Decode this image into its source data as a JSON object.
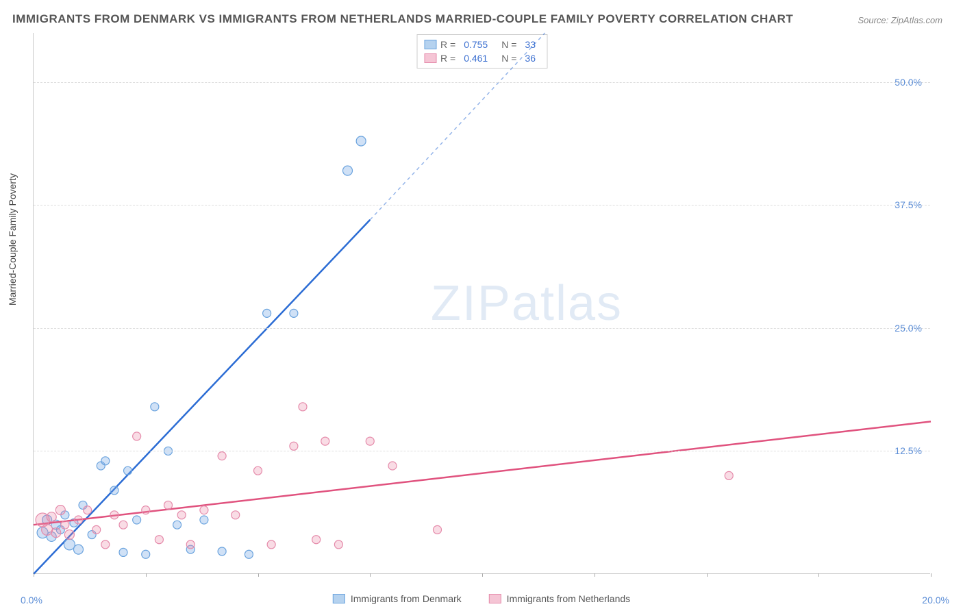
{
  "title": "IMMIGRANTS FROM DENMARK VS IMMIGRANTS FROM NETHERLANDS MARRIED-COUPLE FAMILY POVERTY CORRELATION CHART",
  "source": "Source: ZipAtlas.com",
  "watermark_zip": "ZIP",
  "watermark_atlas": "atlas",
  "y_axis_label": "Married-Couple Family Poverty",
  "chart": {
    "type": "scatter-with-regression",
    "x_range": [
      0,
      20
    ],
    "y_range": [
      0,
      55
    ],
    "background_color": "#ffffff",
    "grid_color": "#dddddd",
    "y_ticks": [
      {
        "value": 12.5,
        "label": "12.5%"
      },
      {
        "value": 25.0,
        "label": "25.0%"
      },
      {
        "value": 37.5,
        "label": "37.5%"
      },
      {
        "value": 50.0,
        "label": "50.0%"
      }
    ],
    "x_tick_values": [
      0,
      2.5,
      5,
      7.5,
      10,
      12.5,
      15,
      17.5,
      20
    ],
    "x_label_min": "0.0%",
    "x_label_max": "20.0%",
    "series": [
      {
        "name": "Immigrants from Denmark",
        "color_fill": "rgba(120,170,230,0.35)",
        "color_stroke": "#6aa3de",
        "swatch_fill": "#b5d2ef",
        "swatch_stroke": "#6aa3de",
        "line_color": "#2b6cd4",
        "R": "0.755",
        "N": "33",
        "regression": {
          "x1": 0,
          "y1": 0,
          "x2_solid": 7.5,
          "y2_solid": 36,
          "x2_dash": 11.4,
          "y2_dash": 55
        },
        "points": [
          {
            "x": 0.2,
            "y": 4.2,
            "r": 8
          },
          {
            "x": 0.3,
            "y": 5.5,
            "r": 7
          },
          {
            "x": 0.4,
            "y": 3.8,
            "r": 7
          },
          {
            "x": 0.5,
            "y": 5.0,
            "r": 7
          },
          {
            "x": 0.6,
            "y": 4.5,
            "r": 6
          },
          {
            "x": 0.7,
            "y": 6.0,
            "r": 6
          },
          {
            "x": 0.8,
            "y": 3.0,
            "r": 8
          },
          {
            "x": 0.9,
            "y": 5.2,
            "r": 6
          },
          {
            "x": 1.0,
            "y": 2.5,
            "r": 7
          },
          {
            "x": 1.1,
            "y": 7.0,
            "r": 6
          },
          {
            "x": 1.3,
            "y": 4.0,
            "r": 6
          },
          {
            "x": 1.5,
            "y": 11.0,
            "r": 6
          },
          {
            "x": 1.6,
            "y": 11.5,
            "r": 6
          },
          {
            "x": 1.8,
            "y": 8.5,
            "r": 6
          },
          {
            "x": 2.0,
            "y": 2.2,
            "r": 6
          },
          {
            "x": 2.1,
            "y": 10.5,
            "r": 6
          },
          {
            "x": 2.3,
            "y": 5.5,
            "r": 6
          },
          {
            "x": 2.5,
            "y": 2.0,
            "r": 6
          },
          {
            "x": 2.7,
            "y": 17.0,
            "r": 6
          },
          {
            "x": 3.0,
            "y": 12.5,
            "r": 6
          },
          {
            "x": 3.2,
            "y": 5.0,
            "r": 6
          },
          {
            "x": 3.5,
            "y": 2.5,
            "r": 6
          },
          {
            "x": 3.8,
            "y": 5.5,
            "r": 6
          },
          {
            "x": 4.2,
            "y": 2.3,
            "r": 6
          },
          {
            "x": 4.8,
            "y": 2.0,
            "r": 6
          },
          {
            "x": 5.2,
            "y": 26.5,
            "r": 6
          },
          {
            "x": 5.8,
            "y": 26.5,
            "r": 6
          },
          {
            "x": 7.0,
            "y": 41.0,
            "r": 7
          },
          {
            "x": 7.3,
            "y": 44.0,
            "r": 7
          }
        ]
      },
      {
        "name": "Immigrants from Netherlands",
        "color_fill": "rgba(235,140,170,0.30)",
        "color_stroke": "#e58aaa",
        "swatch_fill": "#f5c5d5",
        "swatch_stroke": "#e58aaa",
        "line_color": "#e0527e",
        "R": "0.461",
        "N": "36",
        "regression": {
          "x1": 0,
          "y1": 5,
          "x2_solid": 20,
          "y2_solid": 15.5,
          "x2_dash": 20,
          "y2_dash": 15.5
        },
        "points": [
          {
            "x": 0.2,
            "y": 5.5,
            "r": 10
          },
          {
            "x": 0.3,
            "y": 4.5,
            "r": 8
          },
          {
            "x": 0.4,
            "y": 5.8,
            "r": 7
          },
          {
            "x": 0.5,
            "y": 4.2,
            "r": 7
          },
          {
            "x": 0.6,
            "y": 6.5,
            "r": 7
          },
          {
            "x": 0.7,
            "y": 5.0,
            "r": 6
          },
          {
            "x": 0.8,
            "y": 4.0,
            "r": 7
          },
          {
            "x": 1.0,
            "y": 5.5,
            "r": 6
          },
          {
            "x": 1.2,
            "y": 6.5,
            "r": 6
          },
          {
            "x": 1.4,
            "y": 4.5,
            "r": 6
          },
          {
            "x": 1.6,
            "y": 3.0,
            "r": 6
          },
          {
            "x": 1.8,
            "y": 6.0,
            "r": 6
          },
          {
            "x": 2.0,
            "y": 5.0,
            "r": 6
          },
          {
            "x": 2.3,
            "y": 14.0,
            "r": 6
          },
          {
            "x": 2.5,
            "y": 6.5,
            "r": 6
          },
          {
            "x": 2.8,
            "y": 3.5,
            "r": 6
          },
          {
            "x": 3.0,
            "y": 7.0,
            "r": 6
          },
          {
            "x": 3.3,
            "y": 6.0,
            "r": 6
          },
          {
            "x": 3.5,
            "y": 3.0,
            "r": 6
          },
          {
            "x": 3.8,
            "y": 6.5,
            "r": 6
          },
          {
            "x": 4.2,
            "y": 12.0,
            "r": 6
          },
          {
            "x": 4.5,
            "y": 6.0,
            "r": 6
          },
          {
            "x": 5.0,
            "y": 10.5,
            "r": 6
          },
          {
            "x": 5.3,
            "y": 3.0,
            "r": 6
          },
          {
            "x": 5.8,
            "y": 13.0,
            "r": 6
          },
          {
            "x": 6.0,
            "y": 17.0,
            "r": 6
          },
          {
            "x": 6.3,
            "y": 3.5,
            "r": 6
          },
          {
            "x": 6.5,
            "y": 13.5,
            "r": 6
          },
          {
            "x": 6.8,
            "y": 3.0,
            "r": 6
          },
          {
            "x": 7.5,
            "y": 13.5,
            "r": 6
          },
          {
            "x": 8.0,
            "y": 11.0,
            "r": 6
          },
          {
            "x": 9.0,
            "y": 4.5,
            "r": 6
          },
          {
            "x": 15.5,
            "y": 10.0,
            "r": 6
          }
        ]
      }
    ]
  },
  "legend_top": {
    "rows": [
      {
        "series_idx": 0,
        "r_label": "R =",
        "n_label": "N ="
      },
      {
        "series_idx": 1,
        "r_label": "R =",
        "n_label": "N ="
      }
    ]
  }
}
